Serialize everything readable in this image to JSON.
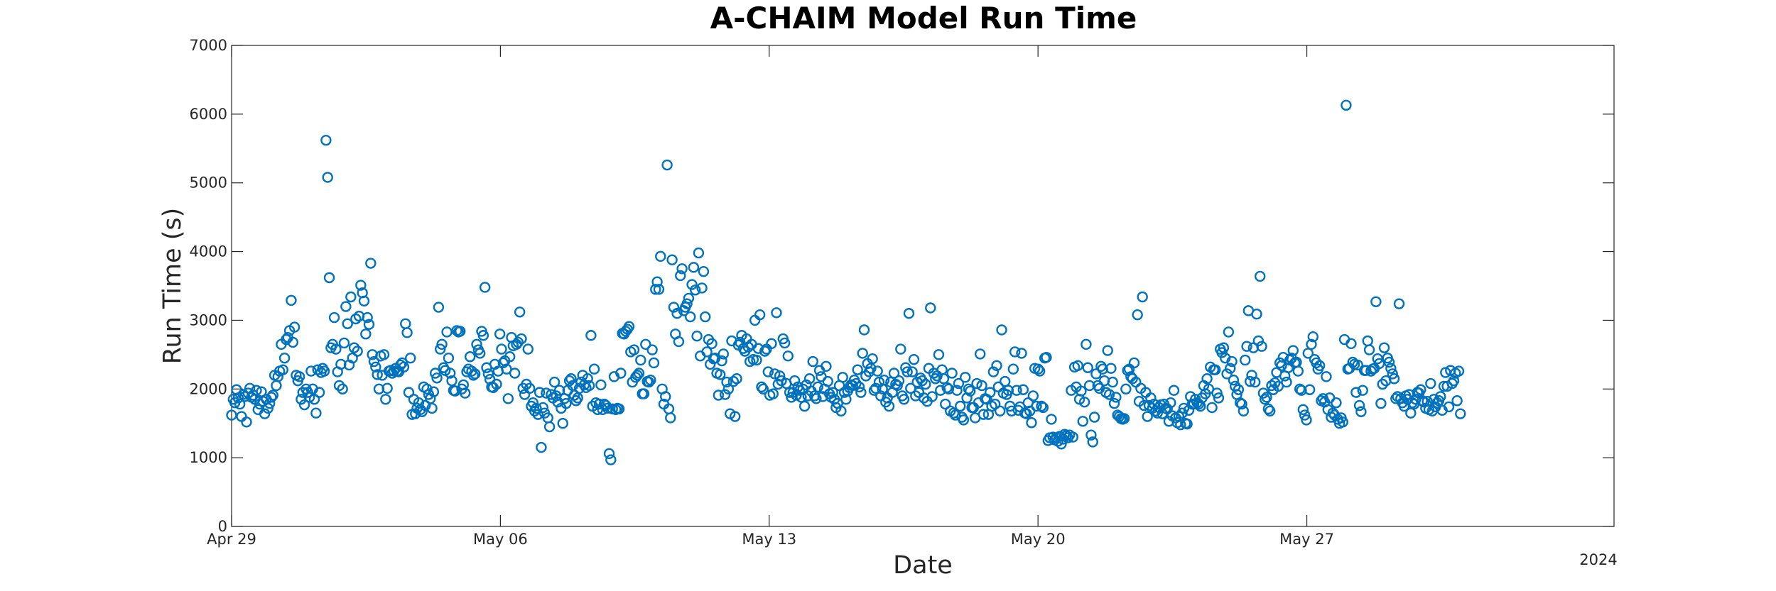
{
  "chart_data": {
    "type": "scatter",
    "title": "A-CHAIM Model Run Time",
    "xlabel": "Date",
    "ylabel": "Run Time (s)",
    "year_label": "2024",
    "marker": "circle",
    "series_color": "#0072bd",
    "grid": false,
    "xlim": [
      "2024-04-29",
      "2024-06-04"
    ],
    "ylim": [
      0,
      7000
    ],
    "xticks": [
      {
        "date": "2024-04-29",
        "label": "Apr 29"
      },
      {
        "date": "2024-05-06",
        "label": "May 06"
      },
      {
        "date": "2024-05-13",
        "label": "May 13"
      },
      {
        "date": "2024-05-20",
        "label": "May 20"
      },
      {
        "date": "2024-05-27",
        "label": "May 27"
      }
    ],
    "yticks": [
      0,
      1000,
      2000,
      3000,
      4000,
      5000,
      6000,
      7000
    ],
    "x_data_end": "2024-05-31",
    "y": [
      1620,
      1850,
      1800,
      1990,
      1870,
      1780,
      1600,
      1920,
      1890,
      1520,
      1940,
      2010,
      1880,
      1910,
      1850,
      1980,
      1700,
      1780,
      1960,
      1820,
      1640,
      1850,
      1720,
      1790,
      1880,
      1910,
      2200,
      2050,
      2180,
      2260,
      2650,
      2280,
      2450,
      2720,
      2750,
      2850,
      3290,
      2680,
      2900,
      2200,
      2120,
      2180,
      1850,
      1950,
      1770,
      2000,
      1950,
      1880,
      2260,
      2000,
      1850,
      1650,
      2280,
      1950,
      2240,
      2300,
      2260,
      5620,
      5080,
      3620,
      2600,
      2650,
      3040,
      2580,
      2250,
      2050,
      2360,
      2000,
      2670,
      3200,
      2950,
      2350,
      3340,
      2450,
      2600,
      3020,
      2550,
      3060,
      3510,
      3400,
      3280,
      2800,
      3040,
      2940,
      3830,
      2500,
      2400,
      2320,
      2210,
      2000,
      2480,
      2200,
      2500,
      1850,
      2010,
      2260,
      2270,
      2230,
      2260,
      2300,
      2260,
      2250,
      2350,
      2380,
      2320,
      2950,
      2820,
      1950,
      2450,
      1630,
      1850,
      1640,
      1720,
      1800,
      1700,
      1670,
      2030,
      1760,
      2000,
      1920,
      1860,
      1720,
      1960,
      2230,
      2160,
      3190,
      2580,
      2650,
      2310,
      2270,
      2830,
      2450,
      2230,
      2120,
      1980,
      1970,
      2850,
      2830,
      2840,
      2000,
      2060,
      1940,
      2250,
      2290,
      2470,
      2260,
      2200,
      2220,
      2650,
      2570,
      2520,
      2840,
      2780,
      3480,
      2310,
      2220,
      2140,
      2030,
      2020,
      2360,
      2070,
      2260,
      2800,
      2580,
      2380,
      2410,
      2290,
      1860,
      2470,
      2750,
      2630,
      2230,
      2650,
      2680,
      3120,
      2730,
      2010,
      1920,
      2070,
      2580,
      2010,
      1750,
      1800,
      1680,
      1720,
      1630,
      1950,
      1150,
      1730,
      1650,
      1940,
      1580,
      1450,
      1920,
      1870,
      2100,
      1900,
      1810,
      1980,
      1720,
      1500,
      1860,
      1790,
      1980,
      2120,
      2150,
      2050,
      1910,
      1830,
      1870,
      2010,
      2100,
      2200,
      2060,
      2020,
      2150,
      2050,
      2780,
      1750,
      2290,
      1800,
      1700,
      1780,
      2060,
      1700,
      1780,
      1760,
      1720,
      1060,
      970,
      1710,
      2180,
      1700,
      1720,
      1710,
      2230,
      2810,
      2800,
      2840,
      2870,
      2910,
      2540,
      2100,
      2570,
      2170,
      2200,
      2230,
      2420,
      1930,
      1930,
      2650,
      2110,
      2100,
      2130,
      2570,
      2380,
      3450,
      3560,
      3450,
      3930,
      2000,
      1780,
      1890,
      5260,
      1710,
      1580,
      3880,
      3190,
      2800,
      3100,
      2690,
      3650,
      3750,
      3140,
      3190,
      3240,
      3320,
      3050,
      3520,
      3770,
      3440,
      2770,
      3980,
      2480,
      3470,
      3710,
      3050,
      2540,
      2720,
      2360,
      2660,
      2440,
      2450,
      2230,
      1910,
      2210,
      2410,
      2510,
      1920,
      2100,
      2000,
      1640,
      2700,
      2110,
      1600,
      2150,
      2640,
      2680,
      2780,
      2590,
      2550,
      2730,
      2610,
      2400,
      2650,
      2430,
      3000,
      2420,
      2590,
      3080,
      2030,
      2000,
      2550,
      2580,
      2250,
      1910,
      2660,
      1930,
      2220,
      3110,
      2070,
      2190,
      2120,
      2730,
      2670,
      2080,
      2480,
      1950,
      1880,
      1950,
      2120,
      1910,
      2030,
      1980,
      1880,
      2000,
      1750,
      2060,
      1900,
      2150,
      1970,
      2400,
      1900,
      1860,
      2030,
      2270,
      2180,
      1890,
      2000,
      2330,
      2110,
      1930,
      1880,
      1950,
      1850,
      1730,
      1790,
      2050,
      1680,
      2170,
      1950,
      1850,
      1970,
      2020,
      2060,
      2050,
      2130,
      2080,
      2280,
      2030,
      1950,
      2520,
      2860,
      2190,
      2370,
      2250,
      2300,
      2440,
      1980,
      2010,
      2260,
      2100,
      1900,
      2000,
      2130,
      1810,
      1870,
      1750,
      2100,
      1950,
      2230,
      2070,
      2050,
      2120,
      2580,
      1900,
      1850,
      2310,
      2250,
      3100,
      2010,
      2250,
      2430,
      1900,
      2100,
      1950,
      2160,
      2120,
      1870,
      2070,
      1820,
      2300,
      3180,
      1890,
      2230,
      2150,
      2190,
      2500,
      1980,
      2280,
      2150,
      1780,
      2020,
      2000,
      1680,
      2230,
      1650,
      1620,
      1980,
      2080,
      1750,
      1590,
      1550,
      2170,
      1870,
      2000,
      1970,
      1730,
      1730,
      1580,
      2080,
      1800,
      2510,
      2050,
      1630,
      1860,
      1850,
      1630,
      1950,
      1750,
      2250,
      1780,
      2340,
      2030,
      1680,
      2860,
      1940,
      2110,
      1920,
      1980,
      1750,
      1680,
      2290,
      2540,
      1980,
      1690,
      1740,
      2520,
      1990,
      1650,
      1640,
      1800,
      1680,
      1510,
      1900,
      2300,
      1750,
      2290,
      2260,
      1750,
      1730,
      2450,
      2460,
      1250,
      1290,
      1560,
      1300,
      1260,
      1290,
      1240,
      1310,
      1200,
      1270,
      1340,
      1320,
      1290,
      1330,
      1980,
      1300,
      2320,
      2030,
      2340,
      1850,
      1970,
      1530,
      1810,
      2650,
      2310,
      2050,
      1330,
      1230,
      1590,
      2220,
      2050,
      2010,
      2330,
      2290,
      2120,
      1950,
      2560,
      1920,
      2300,
      2100,
      1790,
      1880,
      1620,
      1600,
      1570,
      1560,
      1570,
      2000,
      2270,
      2290,
      2180,
      2150,
      2380,
      2100,
      3080,
      1820,
      2010,
      3340,
      1760,
      1950,
      1600,
      1760,
      1870,
      1720,
      1780,
      1680,
      1650,
      1730,
      1770,
      1640,
      1780,
      1720,
      1710,
      1530,
      1800,
      1610,
      1980,
      1580,
      1510,
      1600,
      1480,
      1650,
      1720,
      1500,
      1490,
      1690,
      1890,
      1780,
      1780,
      1850,
      1800,
      1780,
      1750,
      1870,
      2050,
      1930,
      2150,
      2000,
      2320,
      1730,
      2280,
      2280,
      1940,
      1870,
      2580,
      2530,
      2600,
      2450,
      2220,
      2830,
      2300,
      2400,
      2130,
      2040,
      1920,
      1990,
      1800,
      1780,
      1680,
      2420,
      2620,
      3140,
      2110,
      2200,
      2600,
      2100,
      3090,
      2700,
      3640,
      2620,
      1940,
      1850,
      1880,
      1710,
      1680,
      2050,
      1990,
      2090,
      2240,
      2040,
      2380,
      2340,
      2460,
      2190,
      2100,
      2310,
      2420,
      2450,
      2560,
      2380,
      2390,
      2260,
      2000,
      1980,
      1700,
      1620,
      1550,
      2520,
      1990,
      2650,
      2760,
      2430,
      2380,
      2290,
      2340,
      1830,
      1860,
      1810,
      2180,
      1700,
      1870,
      1590,
      1650,
      1620,
      1800,
      1560,
      1500,
      1580,
      1520,
      2720,
      6130,
      2290,
      2300,
      2660,
      2390,
      2360,
      1950,
      2350,
      1760,
      1670,
      1980,
      2270,
      2270,
      2700,
      2570,
      2260,
      2290,
      2300,
      3270,
      2440,
      2370,
      1790,
      2070,
      2600,
      2120,
      2450,
      2390,
      2300,
      2220,
      2150,
      1860,
      1890,
      3240,
      1860,
      1800,
      1750,
      1900,
      1850,
      1920,
      1650,
      1800,
      1780,
      1850,
      1950,
      1940,
      1990,
      1830,
      1810,
      1720,
      1820,
      1700,
      2080,
      1680,
      1850,
      1740,
      1800,
      1830,
      1890,
      1690,
      2040,
      2240,
      2040,
      1740,
      2270,
      2080,
      2120,
      2230,
      1830,
      2260,
      1640
    ]
  }
}
